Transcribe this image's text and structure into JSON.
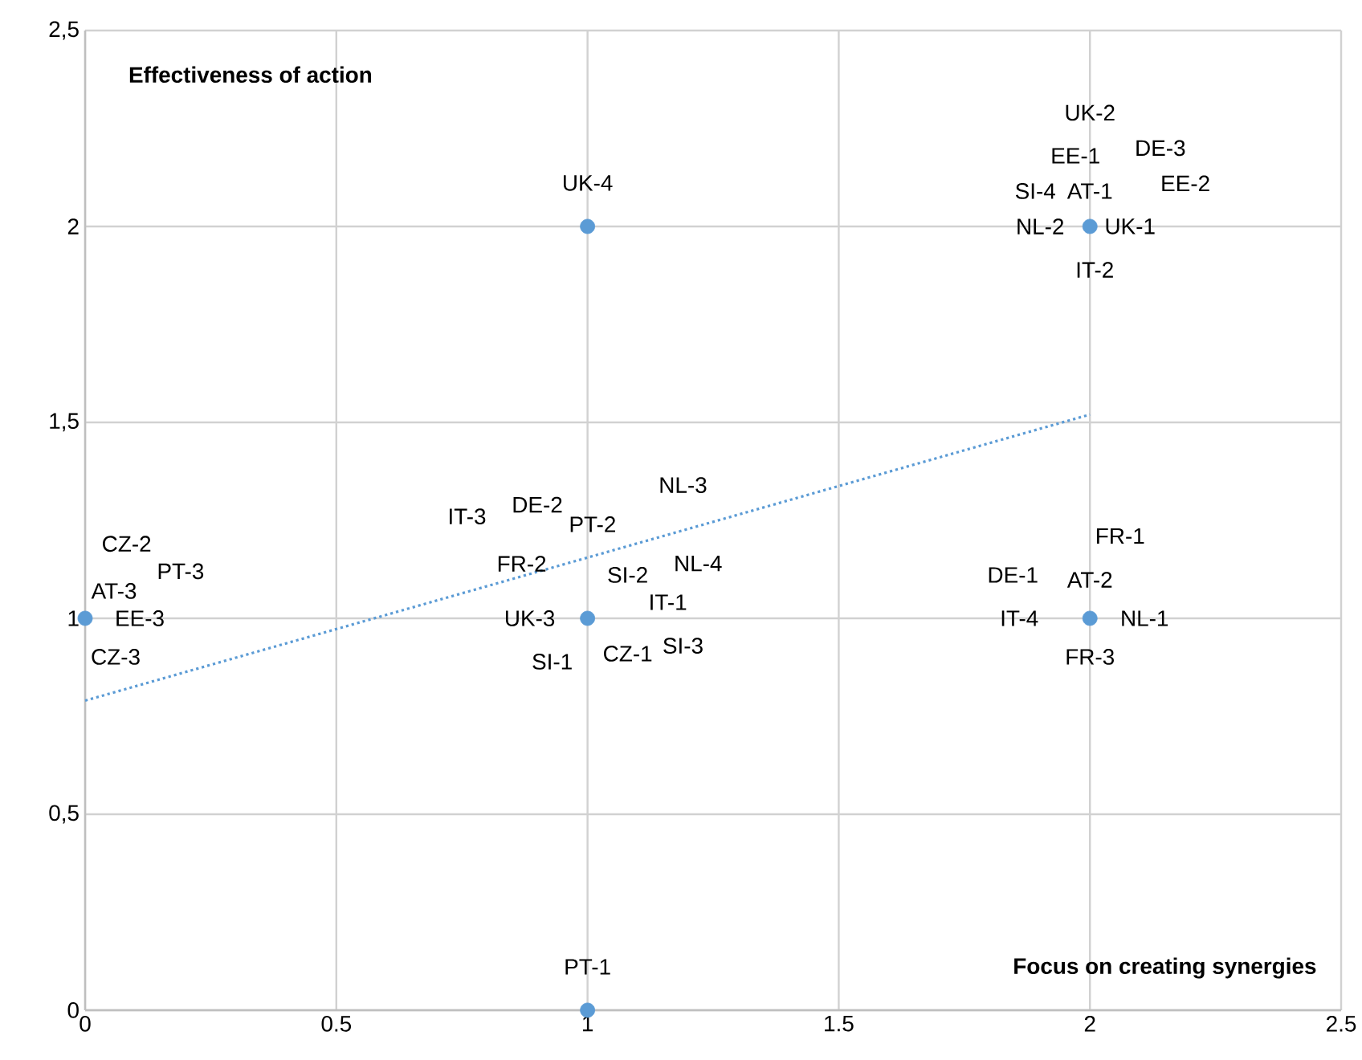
{
  "chart_data": {
    "type": "scatter",
    "xlabel": "Focus on creating synergies",
    "ylabel": "Effectiveness of action",
    "series": [
      {
        "color": "#5b9bd5",
        "marker": "circle",
        "x": [
          0,
          1,
          1,
          1,
          2,
          2
        ],
        "values": [
          1,
          2,
          1,
          0,
          2,
          1
        ]
      },
      {
        "type": "line",
        "color": "#5b9bd5",
        "marker": "none",
        "line_style": "dotted",
        "x": [
          0,
          2
        ],
        "values": [
          0.79,
          1.52
        ]
      }
    ],
    "xlim": [
      0,
      2.5
    ],
    "ylim": [
      0,
      2.5
    ],
    "xticks": [
      0,
      0.5,
      1,
      1.5,
      2,
      2.5
    ],
    "yticks": [
      0,
      {
        "value": 0.5,
        "label": "0,5"
      },
      1,
      {
        "value": 1.5,
        "label": "1,5"
      },
      2,
      {
        "value": 2.5,
        "label": "2,5"
      }
    ],
    "grid": true,
    "annotations": [
      {
        "text": "UK-4",
        "x": 1,
        "y": 2
      },
      "UK-2",
      "DE-3",
      {
        "text": "EE-1",
        "x": 2,
        "y": 2
      },
      "EE-2",
      {
        "text": "SI-4",
        "x": 2,
        "y": 2
      },
      {
        "text": "AT-1",
        "x": 2,
        "y": 2
      },
      {
        "text": "NL-2",
        "x": 2,
        "y": 2
      },
      {
        "text": "UK-1",
        "x": 2,
        "y": 2
      },
      {
        "text": "IT-2",
        "x": 2,
        "y": 2
      },
      "NL-3",
      "IT-3",
      "DE-2",
      "PT-2",
      {
        "text": "FR-2",
        "x": 1,
        "y": 1
      },
      {
        "text": "SI-2",
        "x": 1,
        "y": 1
      },
      "NL-4",
      {
        "text": "IT-1",
        "x": 1,
        "y": 1
      },
      {
        "text": "UK-3",
        "x": 1,
        "y": 1
      },
      {
        "text": "CZ-1",
        "x": 1,
        "y": 1
      },
      "SI-3",
      {
        "text": "SI-1",
        "x": 1,
        "y": 1
      },
      "CZ-2",
      "PT-3",
      {
        "text": "AT-3",
        "x": 0,
        "y": 1
      },
      {
        "text": "EE-3",
        "x": 0,
        "y": 1
      },
      {
        "text": "CZ-3",
        "x": 0,
        "y": 1
      },
      "FR-1",
      {
        "text": "DE-1",
        "x": 2,
        "y": 1
      },
      {
        "text": "AT-2",
        "x": 2,
        "y": 1
      },
      {
        "text": "IT-4",
        "x": 2,
        "y": 1
      },
      {
        "text": "NL-1",
        "x": 2,
        "y": 1
      },
      {
        "text": "FR-3",
        "x": 2,
        "y": 1
      },
      {
        "text": "PT-1",
        "x": 1,
        "y": 0
      }
    ]
  }
}
